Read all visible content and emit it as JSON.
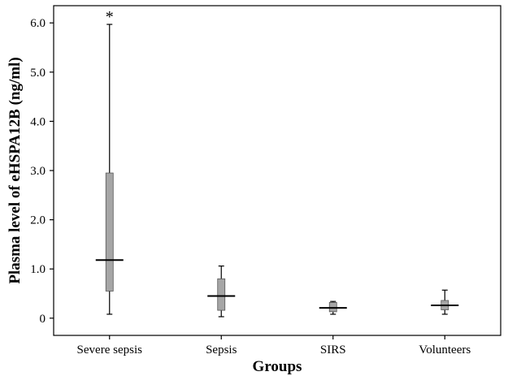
{
  "chart_data": {
    "type": "box",
    "xlabel": "Groups",
    "ylabel": "Plasma level of eHSPA12B (ng/ml)",
    "ylim": [
      -0.35,
      6.35
    ],
    "yticks": [
      "0",
      "1.0",
      "2.0",
      "3.0",
      "4.0",
      "5.0",
      "6.0"
    ],
    "ytick_values": [
      0,
      1,
      2,
      3,
      4,
      5,
      6
    ],
    "categories": [
      "Severe sepsis",
      "Sepsis",
      "SIRS",
      "Volunteers"
    ],
    "boxes": [
      {
        "group": "Severe sepsis",
        "whisker_low": 0.08,
        "q1": 0.55,
        "median": 1.18,
        "q3": 2.95,
        "whisker_high": 5.97,
        "annotation": "*"
      },
      {
        "group": "Sepsis",
        "whisker_low": 0.03,
        "q1": 0.16,
        "median": 0.45,
        "q3": 0.8,
        "whisker_high": 1.06
      },
      {
        "group": "SIRS",
        "whisker_low": 0.08,
        "q1": 0.13,
        "median": 0.21,
        "q3": 0.32,
        "whisker_high": 0.34
      },
      {
        "group": "Volunteers",
        "whisker_low": 0.08,
        "q1": 0.17,
        "median": 0.26,
        "q3": 0.36,
        "whisker_high": 0.57
      }
    ],
    "grid": false,
    "box_color": "#a6a6a6",
    "line_color": "#000000"
  }
}
